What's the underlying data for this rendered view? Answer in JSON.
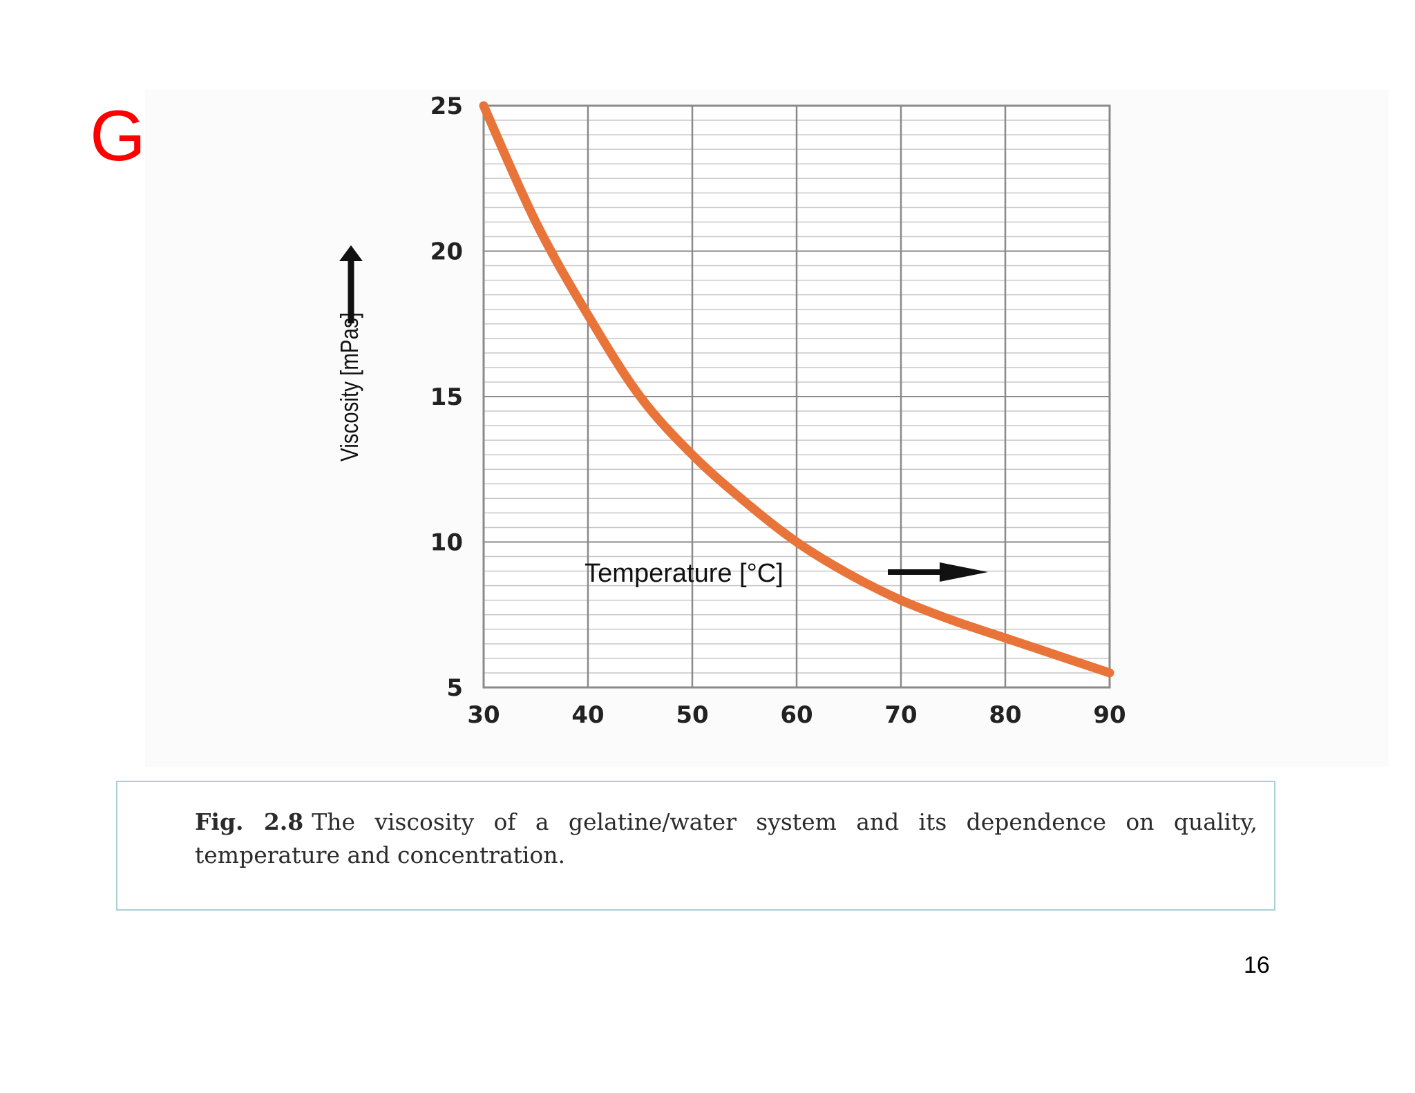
{
  "slide": {
    "title": "Gelatin",
    "page_number": "16"
  },
  "caption": {
    "lead": "Fig. 2.8",
    "text": "The viscosity of a gelatine/water system and its dependence on quality, temperature and concentration."
  },
  "colors": {
    "title": "#ff0000",
    "curve": "#e8743a",
    "grid_major": "#8a8a8a",
    "grid_minor": "#c8c8c8",
    "caption_border": "#a9cfd6"
  },
  "chart_data": {
    "type": "line",
    "title": "",
    "xlabel": "Temperature [°C]",
    "ylabel": "Viscosity [mPas]",
    "xlim": [
      30,
      90
    ],
    "ylim": [
      5,
      25
    ],
    "x_ticks": [
      30,
      40,
      50,
      60,
      70,
      80,
      90
    ],
    "y_ticks": [
      5,
      10,
      15,
      20,
      25
    ],
    "y_minor_step": 0.5,
    "grid": true,
    "axis_arrows": true,
    "series": [
      {
        "x": [
          30,
          35,
          40,
          45,
          50,
          55,
          60,
          65,
          70,
          75,
          80,
          85,
          90
        ],
        "y": [
          25,
          21,
          17.8,
          15,
          13,
          11.4,
          10,
          8.9,
          8,
          7.3,
          6.7,
          6.1,
          5.5
        ]
      }
    ]
  }
}
